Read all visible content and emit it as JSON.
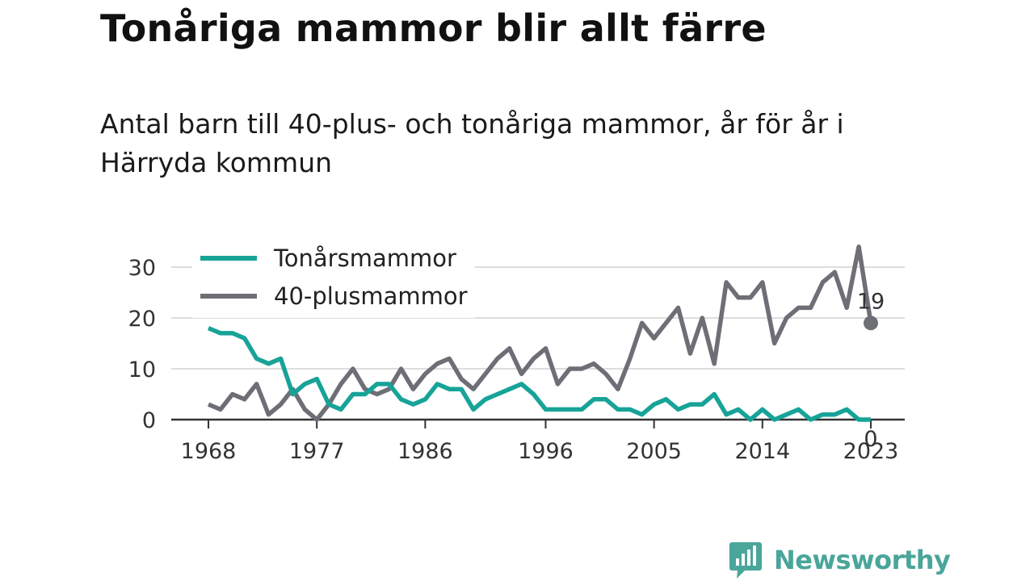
{
  "title": "Tonåriga mammor blir allt färre",
  "subtitle": "Antal barn till 40-plus- och tonåriga mammor, år för år i Härryda kommun",
  "brand": {
    "name": "Newsworthy",
    "icon": "newsworthy-logo-icon",
    "color": "#4aa59a"
  },
  "chart_data": {
    "type": "line",
    "title": "",
    "xlabel": "",
    "ylabel": "",
    "x": [
      1968,
      1969,
      1970,
      1971,
      1972,
      1973,
      1974,
      1975,
      1976,
      1977,
      1978,
      1979,
      1980,
      1981,
      1982,
      1983,
      1984,
      1985,
      1986,
      1987,
      1988,
      1989,
      1990,
      1991,
      1992,
      1993,
      1994,
      1995,
      1996,
      1997,
      1998,
      1999,
      2000,
      2001,
      2002,
      2003,
      2004,
      2005,
      2006,
      2007,
      2008,
      2009,
      2010,
      2011,
      2012,
      2013,
      2014,
      2015,
      2016,
      2017,
      2018,
      2019,
      2020,
      2021,
      2022,
      2023
    ],
    "xticks": [
      "1968",
      "1977",
      "1986",
      "1996",
      "2005",
      "2014",
      "2023"
    ],
    "xlim": [
      1968,
      2023
    ],
    "yticks": [
      "0",
      "10",
      "20",
      "30"
    ],
    "ylim": [
      0,
      35
    ],
    "grid": true,
    "legend_position": "top-left",
    "series": [
      {
        "name": "Tonårsmammor",
        "color": "#17a398",
        "values": [
          18,
          17,
          17,
          16,
          12,
          11,
          12,
          5,
          7,
          8,
          3,
          2,
          5,
          5,
          7,
          7,
          4,
          3,
          4,
          7,
          6,
          6,
          2,
          4,
          5,
          6,
          7,
          5,
          2,
          2,
          2,
          2,
          4,
          4,
          2,
          2,
          1,
          3,
          4,
          2,
          3,
          3,
          5,
          1,
          2,
          0,
          2,
          0,
          1,
          2,
          0,
          1,
          1,
          2,
          0,
          0
        ],
        "end_label": "0"
      },
      {
        "name": "40-plusmammor",
        "color": "#6e6e76",
        "values": [
          3,
          2,
          5,
          4,
          7,
          1,
          3,
          6,
          2,
          0,
          3,
          7,
          10,
          6,
          5,
          6,
          10,
          6,
          9,
          11,
          12,
          8,
          6,
          9,
          12,
          14,
          9,
          12,
          14,
          7,
          10,
          10,
          11,
          9,
          6,
          12,
          19,
          16,
          19,
          22,
          13,
          20,
          11,
          27,
          24,
          24,
          27,
          15,
          20,
          22,
          22,
          27,
          29,
          22,
          34,
          19
        ],
        "end_label": "19"
      }
    ]
  }
}
